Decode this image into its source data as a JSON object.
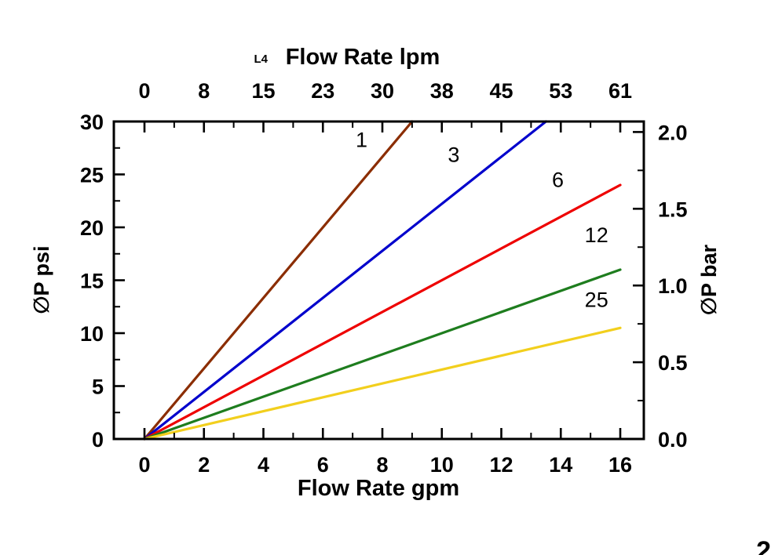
{
  "page": {
    "background": "#ffffff",
    "page_number_partial": "2"
  },
  "chart_data": {
    "type": "line",
    "title": "Flow Rate lpm",
    "top_axis": {
      "title": "Flow Rate lpm",
      "annotation": "L4",
      "tick_labels": [
        "0",
        "8",
        "15",
        "23",
        "30",
        "38",
        "45",
        "53",
        "61"
      ],
      "aligned_with_bottom_ticks": true
    },
    "bottom_axis": {
      "title": "Flow Rate gpm",
      "tick_values": [
        0,
        2,
        4,
        6,
        8,
        10,
        12,
        14,
        16
      ],
      "tick_labels": [
        "0",
        "2",
        "4",
        "6",
        "8",
        "10",
        "12",
        "14",
        "16"
      ],
      "range": [
        0,
        16
      ]
    },
    "left_axis": {
      "title": "∅P psi",
      "tick_values": [
        0,
        5,
        10,
        15,
        20,
        25,
        30
      ],
      "tick_labels": [
        "0",
        "5",
        "10",
        "15",
        "20",
        "25",
        "30"
      ],
      "range": [
        0,
        30
      ]
    },
    "right_axis": {
      "title": "∅P bar",
      "tick_values": [
        0,
        0.5,
        1.0,
        1.5,
        2.0
      ],
      "tick_labels": [
        "0.0",
        "0.5",
        "1.0",
        "1.5",
        "2.0"
      ],
      "psi_per_bar": 14.5038
    },
    "grid": false,
    "legend": "inline-labels",
    "series": [
      {
        "name": "1",
        "color": "#8B2D00",
        "points": [
          [
            0,
            0
          ],
          [
            9,
            30
          ]
        ],
        "label_at": [
          7.3,
          27.6
        ]
      },
      {
        "name": "3",
        "color": "#0000CC",
        "points": [
          [
            0,
            0
          ],
          [
            13.5,
            30
          ]
        ],
        "label_at": [
          10.4,
          26.2
        ]
      },
      {
        "name": "6",
        "color": "#EE0000",
        "points": [
          [
            0,
            0
          ],
          [
            16,
            24
          ]
        ],
        "label_at": [
          13.9,
          23.8
        ]
      },
      {
        "name": "12",
        "color": "#1E7D1E",
        "points": [
          [
            0,
            0
          ],
          [
            16,
            16
          ]
        ],
        "label_at": [
          15.2,
          18.6
        ]
      },
      {
        "name": "25",
        "color": "#F2CF1D",
        "points": [
          [
            0,
            0
          ],
          [
            16,
            10.5
          ]
        ],
        "label_at": [
          15.2,
          12.5
        ]
      }
    ]
  }
}
